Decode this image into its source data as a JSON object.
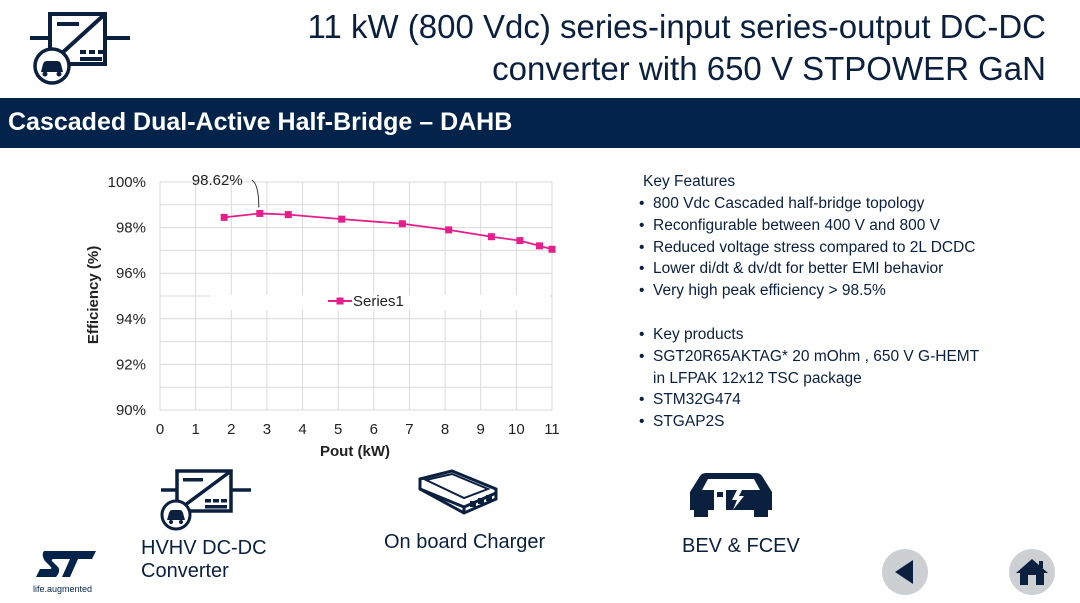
{
  "header": {
    "title_line1": "11 kW (800 Vdc) series-input series-output DC-DC",
    "title_line2": "converter with 650 V STPOWER GaN",
    "section_title": "Cascaded Dual-Active Half-Bridge – DAHB"
  },
  "chart_data": {
    "type": "line",
    "title": "",
    "xlabel": "Pout (kW)",
    "ylabel": "Efficiency (%)",
    "xlim": [
      0,
      11
    ],
    "ylim": [
      90,
      100
    ],
    "x_ticks": [
      "0",
      "1",
      "2",
      "3",
      "4",
      "5",
      "6",
      "7",
      "8",
      "9",
      "10",
      "11"
    ],
    "y_ticks": [
      "90%",
      "92%",
      "94%",
      "96%",
      "98%",
      "100%"
    ],
    "series": [
      {
        "name": "Series1",
        "color": "#e61e8c",
        "x": [
          1.8,
          2.8,
          3.6,
          5.1,
          6.8,
          8.1,
          9.3,
          10.1,
          10.65,
          11.0
        ],
        "y": [
          98.45,
          98.62,
          98.57,
          98.37,
          98.17,
          97.9,
          97.6,
          97.43,
          97.2,
          97.05
        ]
      }
    ],
    "annotation": {
      "text": "98.62%",
      "x": 2.8,
      "y": 98.62
    },
    "legend": {
      "label": "Series1",
      "placement": "center"
    },
    "grid": true
  },
  "features": {
    "heading": "Key Features",
    "items": [
      "800 Vdc Cascaded half-bridge topology",
      "Reconfigurable between 400 V and 800 V",
      "Reduced voltage stress compared to 2L DCDC",
      "Lower di/dt & dv/dt for better EMI behavior",
      "Very high peak efficiency > 98.5%"
    ],
    "products": [
      "Key products",
      "SGT20R65AKTAG* 20 mOhm , 650 V G-HEMT in LFPAK 12x12 TSC package",
      "STM32G474",
      "STGAP2S"
    ]
  },
  "icons": {
    "converter_label_line1": "HVHV DC-DC",
    "converter_label_line2": "Converter",
    "charger_label": "On board Charger",
    "vehicle_label": "BEV & FCEV"
  },
  "logo": {
    "brand": "ST",
    "tagline": "life.augmented"
  },
  "colors": {
    "navy": "#03234b",
    "text": "#0b1f3f",
    "series": "#e61e8c",
    "button": "#cdd0d3"
  }
}
